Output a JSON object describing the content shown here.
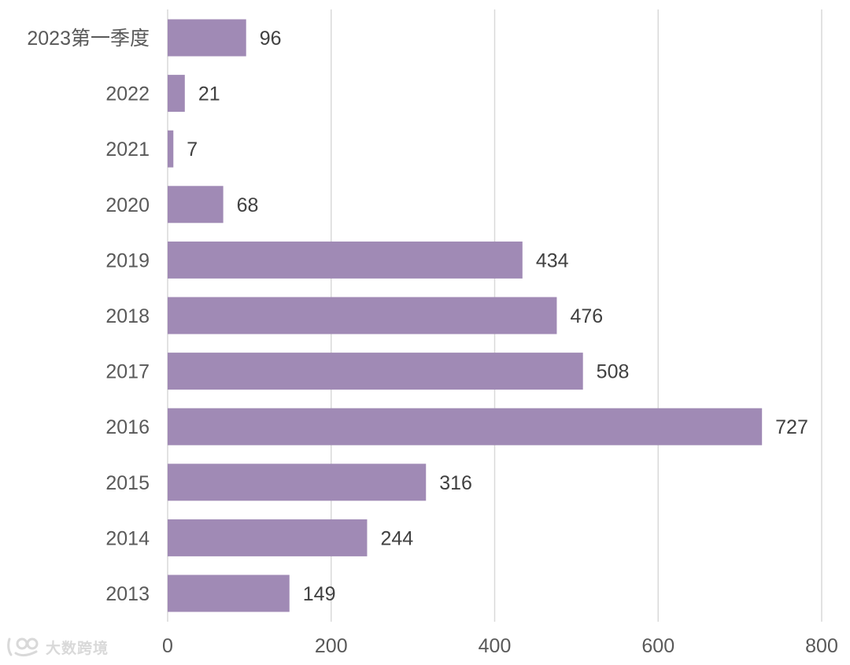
{
  "chart_data": {
    "type": "bar",
    "orientation": "horizontal",
    "categories": [
      "2023第一季度",
      "2022",
      "2021",
      "2020",
      "2019",
      "2018",
      "2017",
      "2016",
      "2015",
      "2014",
      "2013"
    ],
    "values": [
      96,
      21,
      7,
      68,
      434,
      476,
      508,
      727,
      316,
      244,
      149
    ],
    "xlim": [
      0,
      800
    ],
    "xticks": [
      0,
      200,
      400,
      600,
      800
    ],
    "grid": "vertical",
    "bar_color": "#a08ab5",
    "title": "",
    "xlabel": "",
    "ylabel": ""
  },
  "watermark": {
    "text": "大数跨境",
    "icon": "brand-logo-icon"
  }
}
